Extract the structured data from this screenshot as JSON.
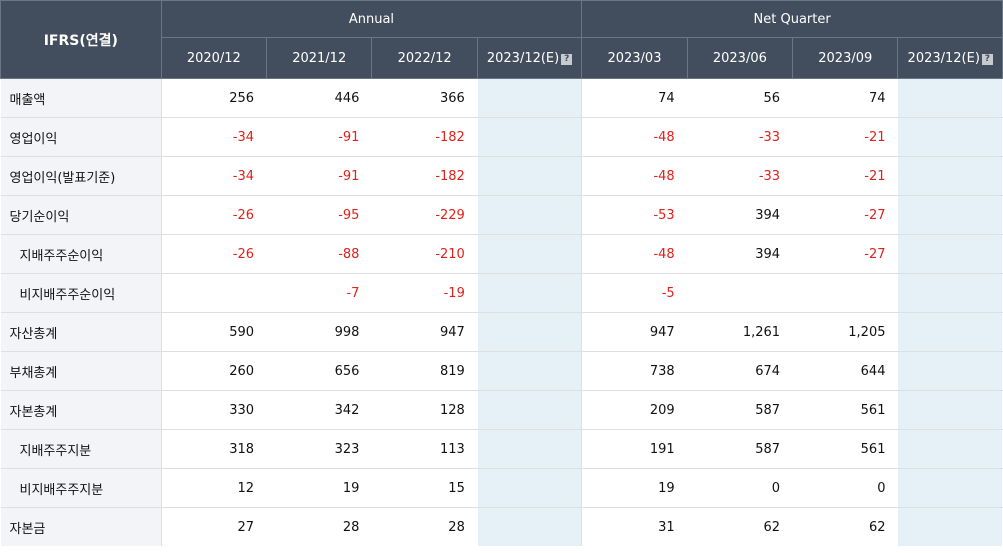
{
  "header": {
    "corner_label": "IFRS(연결)",
    "annual_group": "Annual",
    "quarter_group": "Net Quarter",
    "periods": [
      "2020/12",
      "2021/12",
      "2022/12",
      "2023/12(E)",
      "2023/03",
      "2023/06",
      "2023/09",
      "2023/12(E)"
    ],
    "estimate_help_icon": "question-icon",
    "estimate_help_glyph": "?"
  },
  "colors": {
    "header_bg": "#424e5d",
    "negative": "#e0211b",
    "estimate_bg": "#e5f1f7",
    "label_bg": "#f2f4f7"
  },
  "rows": [
    {
      "label": "매출액",
      "sub": false,
      "values": [
        "256",
        "446",
        "366",
        "",
        "74",
        "56",
        "74",
        ""
      ]
    },
    {
      "label": "영업이익",
      "sub": false,
      "values": [
        "-34",
        "-91",
        "-182",
        "",
        "-48",
        "-33",
        "-21",
        ""
      ]
    },
    {
      "label": "영업이익(발표기준)",
      "sub": false,
      "values": [
        "-34",
        "-91",
        "-182",
        "",
        "-48",
        "-33",
        "-21",
        ""
      ]
    },
    {
      "label": "당기순이익",
      "sub": false,
      "values": [
        "-26",
        "-95",
        "-229",
        "",
        "-53",
        "394",
        "-27",
        ""
      ]
    },
    {
      "label": "지배주주순이익",
      "sub": true,
      "values": [
        "-26",
        "-88",
        "-210",
        "",
        "-48",
        "394",
        "-27",
        ""
      ]
    },
    {
      "label": "비지배주주순이익",
      "sub": true,
      "values": [
        "",
        "-7",
        "-19",
        "",
        "-5",
        "",
        "",
        ""
      ]
    },
    {
      "label": "자산총계",
      "sub": false,
      "values": [
        "590",
        "998",
        "947",
        "",
        "947",
        "1,261",
        "1,205",
        ""
      ]
    },
    {
      "label": "부채총계",
      "sub": false,
      "values": [
        "260",
        "656",
        "819",
        "",
        "738",
        "674",
        "644",
        ""
      ]
    },
    {
      "label": "자본총계",
      "sub": false,
      "values": [
        "330",
        "342",
        "128",
        "",
        "209",
        "587",
        "561",
        ""
      ]
    },
    {
      "label": "지배주주지분",
      "sub": true,
      "values": [
        "318",
        "323",
        "113",
        "",
        "191",
        "587",
        "561",
        ""
      ]
    },
    {
      "label": "비지배주주지분",
      "sub": true,
      "values": [
        "12",
        "19",
        "15",
        "",
        "19",
        "0",
        "0",
        ""
      ]
    },
    {
      "label": "자본금",
      "sub": false,
      "values": [
        "27",
        "28",
        "28",
        "",
        "31",
        "62",
        "62",
        ""
      ]
    }
  ]
}
